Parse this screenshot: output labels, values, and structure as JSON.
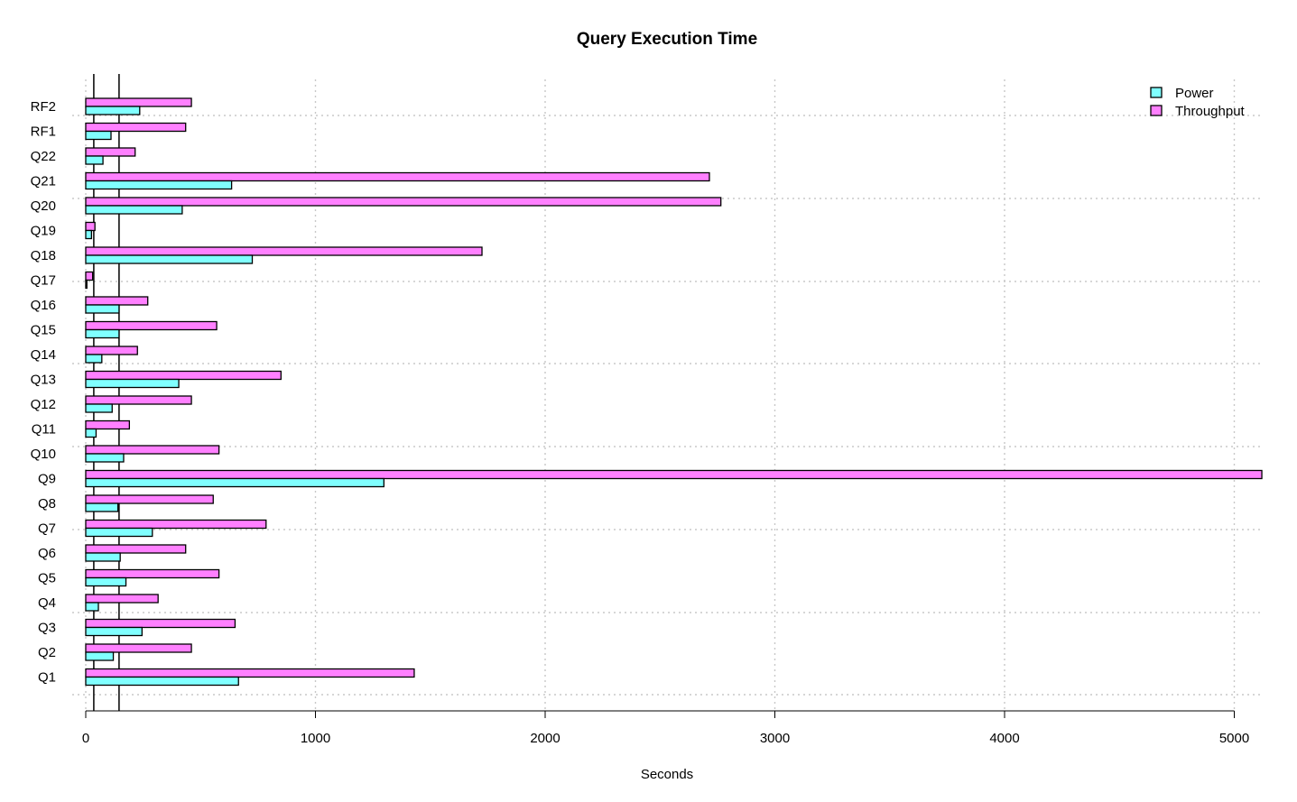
{
  "chart_data": {
    "type": "bar",
    "orientation": "horizontal",
    "title": "Query Execution Time",
    "xlabel": "Seconds",
    "ylabel": "",
    "xlim": [
      0,
      5120
    ],
    "xticks": [
      "0",
      "1000",
      "2000",
      "3000",
      "4000",
      "5000"
    ],
    "xtick_values": [
      0,
      1000,
      2000,
      3000,
      4000,
      5000
    ],
    "grid": true,
    "legend_position": "top-right",
    "categories": [
      "Q1",
      "Q2",
      "Q3",
      "Q4",
      "Q5",
      "Q6",
      "Q7",
      "Q8",
      "Q9",
      "Q10",
      "Q11",
      "Q12",
      "Q13",
      "Q14",
      "Q15",
      "Q16",
      "Q17",
      "Q18",
      "Q19",
      "Q20",
      "Q21",
      "Q22",
      "RF1",
      "RF2"
    ],
    "series": [
      {
        "name": "Power",
        "color": "#80ffff",
        "values": [
          665,
          120,
          245,
          55,
          175,
          150,
          290,
          140,
          1298,
          165,
          45,
          115,
          405,
          70,
          145,
          145,
          5,
          725,
          25,
          420,
          635,
          75,
          110,
          235
        ]
      },
      {
        "name": "Throughput",
        "color": "#ff80ff",
        "values": [
          1430,
          460,
          650,
          315,
          580,
          435,
          785,
          555,
          5120,
          580,
          190,
          460,
          850,
          225,
          570,
          270,
          30,
          1725,
          40,
          2765,
          2715,
          215,
          435,
          460
        ]
      }
    ],
    "reference_lines": [
      35,
      145
    ]
  }
}
